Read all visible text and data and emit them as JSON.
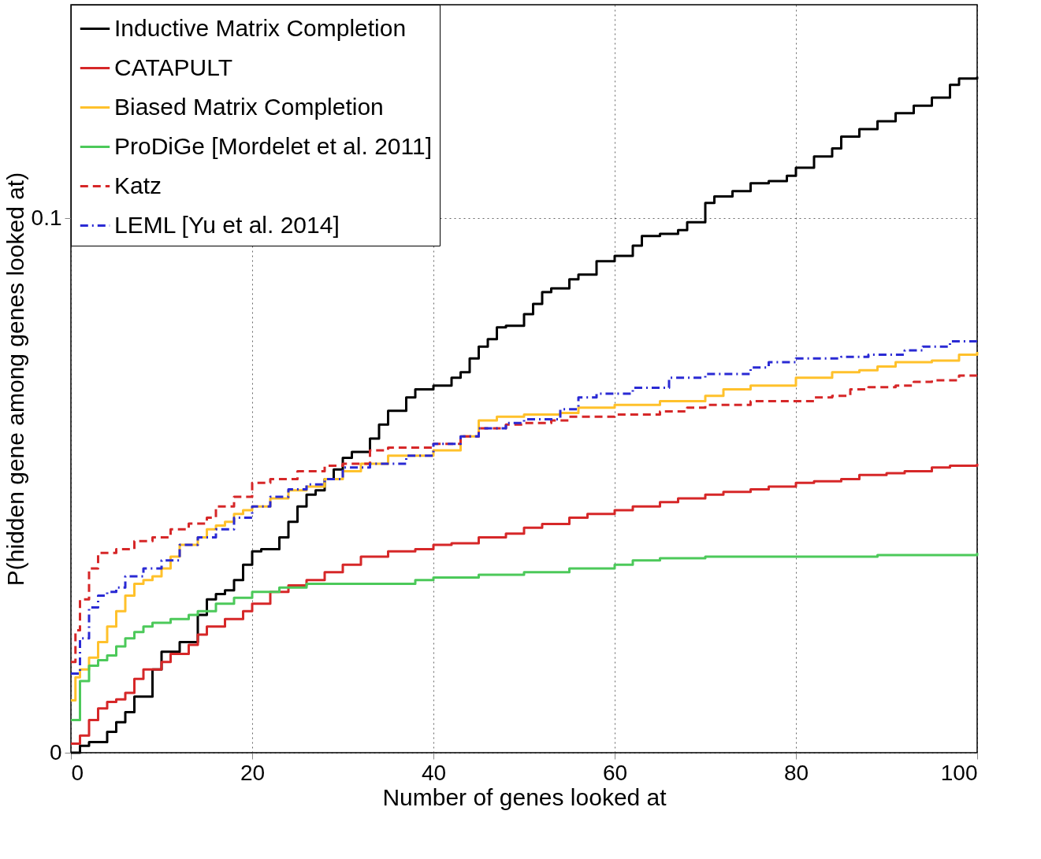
{
  "chart_data": {
    "type": "step",
    "xlabel": "Number of genes looked at",
    "ylabel": "P(hidden gene among genes looked at)",
    "xlim": [
      0,
      100
    ],
    "ylim": [
      0,
      0.14
    ],
    "xticks": [
      0,
      20,
      40,
      60,
      80,
      100
    ],
    "yticks": [
      0,
      0.1
    ],
    "grid": true,
    "legend": "top left",
    "series": [
      {
        "name": "Inductive Matrix Completion",
        "color": "#000000",
        "line_style": "solid",
        "x": [
          0,
          1,
          2,
          4,
          5,
          6,
          7,
          9,
          10,
          12,
          14,
          15,
          16,
          17,
          18,
          19,
          20,
          21,
          23,
          24,
          25,
          26,
          27,
          28,
          29,
          30,
          31,
          33,
          34,
          35,
          37,
          38,
          40,
          42,
          43,
          44,
          45,
          46,
          47,
          48,
          50,
          51,
          52,
          53,
          55,
          56,
          58,
          60,
          62,
          63,
          65,
          67,
          68,
          70,
          71,
          73,
          75,
          77,
          79,
          80,
          82,
          84,
          85,
          87,
          89,
          91,
          93,
          95,
          97,
          98,
          100
        ],
        "values": [
          0,
          0.0013,
          0.002,
          0.0039,
          0.0057,
          0.0076,
          0.0105,
          0.0156,
          0.0189,
          0.0207,
          0.0258,
          0.0287,
          0.0297,
          0.0304,
          0.0323,
          0.0352,
          0.0377,
          0.0381,
          0.0403,
          0.0432,
          0.0461,
          0.0483,
          0.0491,
          0.0512,
          0.053,
          0.0552,
          0.0563,
          0.0588,
          0.0614,
          0.064,
          0.0665,
          0.068,
          0.0687,
          0.0702,
          0.0712,
          0.0738,
          0.076,
          0.0774,
          0.0796,
          0.0799,
          0.0821,
          0.084,
          0.0862,
          0.0869,
          0.0886,
          0.0895,
          0.092,
          0.093,
          0.0949,
          0.0967,
          0.0971,
          0.0978,
          0.0993,
          0.1029,
          0.1041,
          0.1051,
          0.1066,
          0.107,
          0.108,
          0.1095,
          0.1116,
          0.1131,
          0.1153,
          0.1167,
          0.1182,
          0.1197,
          0.1211,
          0.1226,
          0.125,
          0.1262,
          0.1265
        ]
      },
      {
        "name": "CATAPULT",
        "color": "#d62728",
        "line_style": "solid",
        "x": [
          0,
          1,
          2,
          3,
          4,
          5,
          6,
          7,
          8,
          10,
          11,
          13,
          14,
          15,
          17,
          19,
          20,
          22,
          24,
          26,
          28,
          30,
          32,
          35,
          38,
          40,
          42,
          45,
          48,
          50,
          52,
          55,
          57,
          60,
          62,
          65,
          67,
          70,
          72,
          75,
          77,
          80,
          82,
          85,
          87,
          90,
          92,
          95,
          97,
          100
        ],
        "values": [
          0.0017,
          0.0032,
          0.0061,
          0.0083,
          0.0095,
          0.01,
          0.0112,
          0.0138,
          0.0156,
          0.017,
          0.0185,
          0.0202,
          0.0221,
          0.0236,
          0.025,
          0.0265,
          0.0279,
          0.0301,
          0.0313,
          0.0323,
          0.0338,
          0.0352,
          0.0367,
          0.0377,
          0.0381,
          0.0389,
          0.0392,
          0.0403,
          0.041,
          0.0421,
          0.0428,
          0.044,
          0.0447,
          0.0454,
          0.0461,
          0.0469,
          0.0476,
          0.0483,
          0.0488,
          0.0493,
          0.0498,
          0.0505,
          0.0508,
          0.0512,
          0.052,
          0.0523,
          0.0527,
          0.0534,
          0.0537,
          0.0541
        ]
      },
      {
        "name": "Biased Matrix Completion",
        "color": "#ffc12b",
        "line_style": "solid",
        "x": [
          0,
          0.5,
          1,
          2,
          3,
          4,
          5,
          6,
          7,
          8,
          9,
          10,
          11,
          12,
          14,
          15,
          16,
          17,
          18,
          19,
          20,
          22,
          24,
          26,
          28,
          30,
          32,
          35,
          40,
          43,
          45,
          47,
          50,
          54,
          56,
          60,
          65,
          70,
          72,
          75,
          80,
          84,
          87,
          89,
          91,
          95,
          98,
          100
        ],
        "values": [
          0.0098,
          0.0141,
          0.0156,
          0.0178,
          0.0207,
          0.0236,
          0.0265,
          0.0294,
          0.0316,
          0.0323,
          0.033,
          0.0345,
          0.0367,
          0.0389,
          0.0403,
          0.0418,
          0.0425,
          0.0432,
          0.0447,
          0.0454,
          0.0461,
          0.0476,
          0.0491,
          0.0498,
          0.0512,
          0.0527,
          0.0541,
          0.0556,
          0.0566,
          0.0592,
          0.0622,
          0.0629,
          0.0633,
          0.0636,
          0.0646,
          0.0651,
          0.0658,
          0.0668,
          0.068,
          0.0687,
          0.0702,
          0.0712,
          0.0716,
          0.0723,
          0.0731,
          0.0734,
          0.0745,
          0.075
        ]
      },
      {
        "name": "ProDiGe [Mordelet et al. 2011]",
        "color": "#4cc95a",
        "line_style": "solid",
        "x": [
          0,
          1,
          2,
          3,
          4,
          5,
          6,
          7,
          8,
          9,
          11,
          13,
          14,
          16,
          18,
          20,
          23,
          26,
          30,
          38,
          40,
          45,
          50,
          55,
          60,
          62,
          65,
          70,
          80,
          89,
          100
        ],
        "values": [
          0.0061,
          0.0134,
          0.0163,
          0.0173,
          0.0182,
          0.0199,
          0.0214,
          0.0226,
          0.0236,
          0.0243,
          0.025,
          0.0258,
          0.0265,
          0.0279,
          0.029,
          0.0301,
          0.0309,
          0.0316,
          0.0316,
          0.0323,
          0.0328,
          0.0333,
          0.0338,
          0.0345,
          0.0352,
          0.036,
          0.0364,
          0.0367,
          0.0367,
          0.037,
          0.0374
        ]
      },
      {
        "name": "Katz",
        "color": "#d62728",
        "line_style": "dashed",
        "x": [
          0,
          0.5,
          1,
          2,
          3,
          5,
          7,
          9,
          11,
          13,
          15,
          16,
          18,
          20,
          22,
          25,
          28,
          30,
          33,
          35,
          40,
          43,
          45,
          48,
          50,
          53,
          55,
          60,
          65,
          68,
          70,
          75,
          80,
          82,
          84,
          86,
          88,
          91,
          93,
          95,
          98,
          100
        ],
        "values": [
          0.017,
          0.0229,
          0.0287,
          0.0345,
          0.0374,
          0.0381,
          0.0396,
          0.0403,
          0.0418,
          0.0429,
          0.044,
          0.0461,
          0.0479,
          0.0505,
          0.0512,
          0.0527,
          0.0537,
          0.0541,
          0.0566,
          0.0571,
          0.0578,
          0.0592,
          0.0607,
          0.0614,
          0.0617,
          0.0622,
          0.0629,
          0.0633,
          0.0639,
          0.0646,
          0.0651,
          0.0658,
          0.0658,
          0.0665,
          0.0668,
          0.068,
          0.0684,
          0.0687,
          0.0694,
          0.0697,
          0.0706,
          0.0706
        ]
      },
      {
        "name": "LEML [Yu et al. 2014]",
        "color": "#2a2ad4",
        "line_style": "dashdot",
        "x": [
          0,
          1,
          2,
          3,
          4,
          5,
          6,
          8,
          10,
          12,
          14,
          16,
          18,
          20,
          22,
          24,
          26,
          28,
          30,
          33,
          37,
          40,
          43,
          45,
          48,
          50,
          54,
          56,
          58,
          62,
          66,
          70,
          75,
          77,
          80,
          85,
          88,
          92,
          94,
          97,
          100
        ],
        "values": [
          0.0148,
          0.0214,
          0.0272,
          0.0294,
          0.0301,
          0.0309,
          0.033,
          0.0345,
          0.036,
          0.0389,
          0.0403,
          0.0418,
          0.044,
          0.0461,
          0.0479,
          0.0493,
          0.0502,
          0.0512,
          0.0534,
          0.0541,
          0.0556,
          0.0578,
          0.0592,
          0.0607,
          0.0617,
          0.0624,
          0.0643,
          0.0665,
          0.0672,
          0.0683,
          0.0702,
          0.0709,
          0.0721,
          0.0731,
          0.0738,
          0.0741,
          0.0745,
          0.0753,
          0.076,
          0.077,
          0.0771
        ]
      }
    ]
  }
}
